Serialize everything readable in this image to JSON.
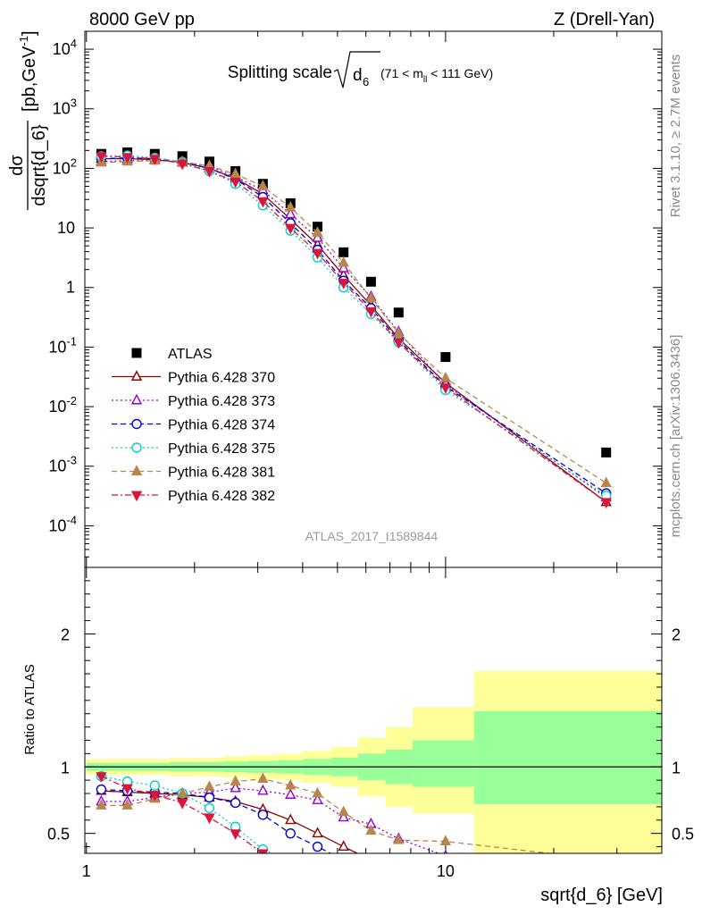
{
  "header": {
    "left": "8000 GeV pp",
    "right": "Z (Drell-Yan)"
  },
  "side_text": {
    "rivet": "Rivet 3.1.10, ≥ 2.7M events",
    "mcplots": "mcplots.cern.ch [arXiv:1306.3436]"
  },
  "chart_data": [
    {
      "type": "scatter",
      "title": "Splitting scale",
      "title_symbol": "d",
      "title_subscript": "6",
      "title_range_prefix": "(71 < m",
      "title_range_sub": "ll",
      "title_range_suffix": " < 111 GeV)",
      "ylabel_num": "dσ",
      "ylabel_den": "dsqrt{d_6}",
      "ylabel_unit": "[pb,GeV",
      "ylabel_unit_sup": "-1",
      "ylabel_unit_close": "]",
      "yscale": "log",
      "xscale": "log",
      "xlim": [
        0.99,
        40
      ],
      "ylim": [
        2e-05,
        20000
      ],
      "y_ticks": [
        {
          "v": 0.0001,
          "base": "10",
          "sup": "-4"
        },
        {
          "v": 0.001,
          "base": "10",
          "sup": "-3"
        },
        {
          "v": 0.01,
          "base": "10",
          "sup": "-2"
        },
        {
          "v": 0.1,
          "base": "10",
          "sup": "-1"
        },
        {
          "v": 1,
          "base": "1",
          "sup": ""
        },
        {
          "v": 10,
          "base": "10",
          "sup": ""
        },
        {
          "v": 100,
          "base": "10",
          "sup": "2"
        },
        {
          "v": 1000,
          "base": "10",
          "sup": "3"
        },
        {
          "v": 10000,
          "base": "10",
          "sup": "4"
        }
      ],
      "analysis_label": "ATLAS_2017_I1589844",
      "legend_position": "left",
      "x": [
        1.1,
        1.3,
        1.55,
        1.85,
        2.2,
        2.6,
        3.1,
        3.7,
        4.4,
        5.2,
        6.2,
        7.4,
        10,
        28
      ],
      "series": [
        {
          "name": "ATLAS",
          "color": "#000000",
          "marker": "square",
          "line": "none",
          "values": [
            175,
            185,
            175,
            160,
            130,
            90,
            55,
            26,
            10.5,
            3.9,
            1.25,
            0.38,
            0.068,
            0.0017
          ]
        },
        {
          "name": "Pythia 6.428 370",
          "color": "#8b0000",
          "marker": "triangle-open",
          "line": "solid",
          "values": [
            145,
            145,
            140,
            125,
            100,
            68,
            37,
            14,
            5.2,
            1.6,
            0.5,
            0.14,
            0.025,
            0.00025
          ]
        },
        {
          "name": "Pythia 6.428 373",
          "color": "#9400d3",
          "marker": "triangle-open",
          "line": "dotted",
          "values": [
            130,
            135,
            135,
            128,
            108,
            72,
            43,
            17,
            6.8,
            2.1,
            0.7,
            0.18,
            0.023,
            0.0003
          ]
        },
        {
          "name": "Pythia 6.428 374",
          "color": "#0000cd",
          "marker": "circle-open",
          "line": "dashed",
          "values": [
            145,
            150,
            145,
            128,
            100,
            66,
            33,
            12,
            4.3,
            1.3,
            0.45,
            0.13,
            0.022,
            0.00035
          ]
        },
        {
          "name": "Pythia 6.428 375",
          "color": "#00ced1",
          "marker": "circle-open",
          "line": "dotted",
          "values": [
            160,
            165,
            150,
            128,
            90,
            55,
            24,
            9,
            3.2,
            1.0,
            0.36,
            0.12,
            0.019,
            0.00032
          ]
        },
        {
          "name": "Pythia 6.428 381",
          "color": "#b8864b",
          "marker": "triangle-filled",
          "line": "dashed",
          "values": [
            125,
            130,
            135,
            128,
            110,
            80,
            50,
            22,
            8.3,
            2.6,
            0.66,
            0.17,
            0.03,
            0.00052
          ]
        },
        {
          "name": "Pythia 6.428 382",
          "color": "#dc143c",
          "marker": "triangle-down-filled",
          "line": "dashdot",
          "values": [
            160,
            155,
            145,
            120,
            90,
            60,
            28,
            10,
            3.8,
            1.2,
            0.4,
            0.12,
            0.021,
            0.00025
          ]
        }
      ]
    },
    {
      "type": "line",
      "ylabel": "Ratio to ATLAS",
      "xlabel": "sqrt{d_6} [GeV]",
      "xscale": "log",
      "xlim": [
        0.99,
        40
      ],
      "ylim": [
        0.35,
        2.5
      ],
      "y_ticks": [
        0.5,
        1,
        2
      ],
      "y_tick_labels": [
        "0.5",
        "1",
        "2"
      ],
      "x_ticks": [
        1,
        10
      ],
      "x_tick_labels": [
        "1",
        "10"
      ],
      "band_edges": [
        1,
        1.2,
        1.4,
        1.7,
        2.0,
        2.4,
        2.8,
        3.4,
        4.0,
        4.8,
        5.7,
        6.8,
        8.1,
        12,
        40
      ],
      "yellow_band": [
        [
          0.94,
          1.06
        ],
        [
          0.94,
          1.06
        ],
        [
          0.94,
          1.06
        ],
        [
          0.93,
          1.07
        ],
        [
          0.93,
          1.07
        ],
        [
          0.92,
          1.08
        ],
        [
          0.91,
          1.09
        ],
        [
          0.9,
          1.1
        ],
        [
          0.88,
          1.12
        ],
        [
          0.85,
          1.15
        ],
        [
          0.78,
          1.22
        ],
        [
          0.7,
          1.3
        ],
        [
          0.65,
          1.45
        ],
        [
          0.35,
          1.72
        ]
      ],
      "green_band": [
        [
          0.97,
          1.03
        ],
        [
          0.97,
          1.03
        ],
        [
          0.97,
          1.03
        ],
        [
          0.965,
          1.035
        ],
        [
          0.965,
          1.035
        ],
        [
          0.96,
          1.04
        ],
        [
          0.955,
          1.045
        ],
        [
          0.95,
          1.05
        ],
        [
          0.94,
          1.06
        ],
        [
          0.93,
          1.07
        ],
        [
          0.9,
          1.1
        ],
        [
          0.87,
          1.13
        ],
        [
          0.85,
          1.2
        ],
        [
          0.72,
          1.42
        ]
      ],
      "series": [
        {
          "name": "Pythia 6.428 370",
          "values": [
            0.82,
            0.81,
            0.8,
            0.79,
            0.77,
            0.74,
            0.68,
            0.6,
            0.5,
            0.4,
            0.3,
            null,
            null,
            null
          ]
        },
        {
          "name": "Pythia 6.428 373",
          "values": [
            0.74,
            0.74,
            0.77,
            0.8,
            0.81,
            0.84,
            0.82,
            0.79,
            0.75,
            0.62,
            0.57,
            0.46,
            0.33,
            null
          ]
        },
        {
          "name": "Pythia 6.428 374",
          "values": [
            0.83,
            0.82,
            0.81,
            0.8,
            0.77,
            0.73,
            0.64,
            0.5,
            0.4,
            0.3,
            null,
            null,
            null,
            null
          ]
        },
        {
          "name": "Pythia 6.428 375",
          "values": [
            0.93,
            0.89,
            0.86,
            0.8,
            0.69,
            0.55,
            0.38,
            0.3,
            null,
            null,
            null,
            null,
            null,
            null
          ]
        },
        {
          "name": "Pythia 6.428 381",
          "values": [
            0.71,
            0.71,
            0.76,
            0.8,
            0.85,
            0.89,
            0.91,
            0.86,
            0.8,
            0.66,
            0.52,
            0.45,
            0.44,
            0.3
          ]
        },
        {
          "name": "Pythia 6.428 382",
          "values": [
            0.93,
            0.84,
            0.79,
            0.73,
            0.62,
            0.5,
            0.35,
            null,
            null,
            null,
            null,
            null,
            null,
            null
          ]
        }
      ]
    }
  ]
}
